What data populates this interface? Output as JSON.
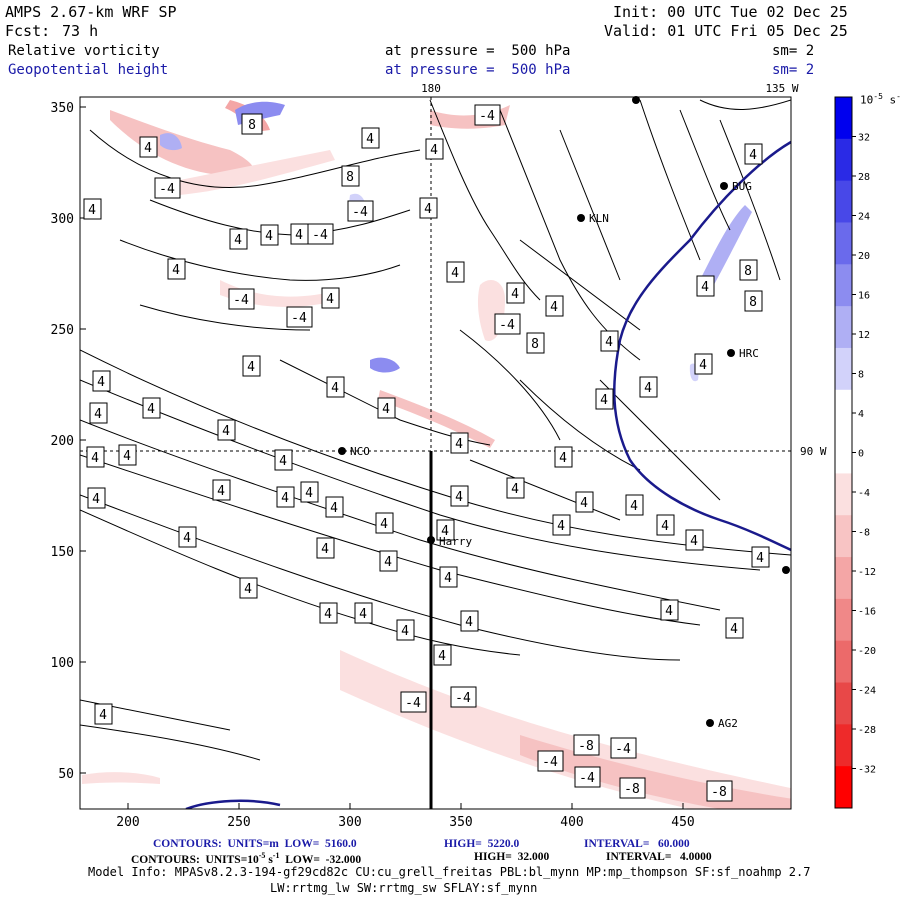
{
  "header": {
    "model": "AMPS 2.67-km WRF SP",
    "fcst_label": "Fcst:",
    "fcst_value": "73 h",
    "init": "Init: 00 UTC Tue 02 Dec 25",
    "valid": "Valid: 01 UTC Fri 05 Dec 25",
    "field1": "Relative vorticity",
    "field2": "Geopotential height",
    "pressure1": "at pressure =  500 hPa",
    "pressure2": "at pressure =  500 hPa",
    "sm1": "sm= 2",
    "sm2": "sm= 2"
  },
  "map": {
    "lon_top": "180",
    "lon_top_right": "135 W",
    "lon_right": "90 W",
    "y_ticks": [
      "350",
      "300",
      "250",
      "200",
      "150",
      "100",
      "50"
    ],
    "x_ticks": [
      "200",
      "250",
      "300",
      "350",
      "400",
      "450"
    ],
    "stations": [
      {
        "name": "KLN"
      },
      {
        "name": "BUG"
      },
      {
        "name": "HRC"
      },
      {
        "name": "NCO"
      },
      {
        "name": "Harry"
      },
      {
        "name": "AG2"
      }
    ],
    "contour_labels": [
      "4",
      "-4",
      "8",
      "-8"
    ]
  },
  "colorbar": {
    "unit": "10-5 s-1",
    "ticks": [
      "32",
      "28",
      "24",
      "20",
      "16",
      "12",
      "8",
      "4",
      "0",
      "-4",
      "-8",
      "-12",
      "-16",
      "-20",
      "-24",
      "-28",
      "-32"
    ],
    "colors": [
      "#0000ee",
      "#2a2ae6",
      "#4848e8",
      "#6a6aec",
      "#8c8cf0",
      "#afafF4",
      "#d2d2fa",
      "#ffffff",
      "#ffffff",
      "#fbe0e0",
      "#f8c4c4",
      "#f4a6a6",
      "#f08888",
      "#ec6a6a",
      "#e84848",
      "#ee2a2a",
      "#ff0000"
    ]
  },
  "footer": {
    "line1_a": "CONTOURS:  UNITS=m  LOW=  5160.0",
    "line1_b": "HIGH=  5220.0",
    "line1_c": "INTERVAL=   60.000",
    "line2_a": "CONTOURS:  UNITS=10",
    "line2_sup1": "-5",
    "line2_s": " s",
    "line2_sup2": "-1",
    "line2_b": "  LOW=  -32.000",
    "line2_c": "HIGH=  32.000",
    "line2_d": "INTERVAL=   4.0000",
    "model_info": "Model Info: MPASv8.2.3-194-gf29cd82c CU:cu_grell_freitas PBL:bl_mynn MP:mp_thompson SF:sf_noahmp 2.7",
    "model_info2": "LW:rrtmg_lw SW:rrtmg_sw SFLAY:sf_mynn"
  }
}
